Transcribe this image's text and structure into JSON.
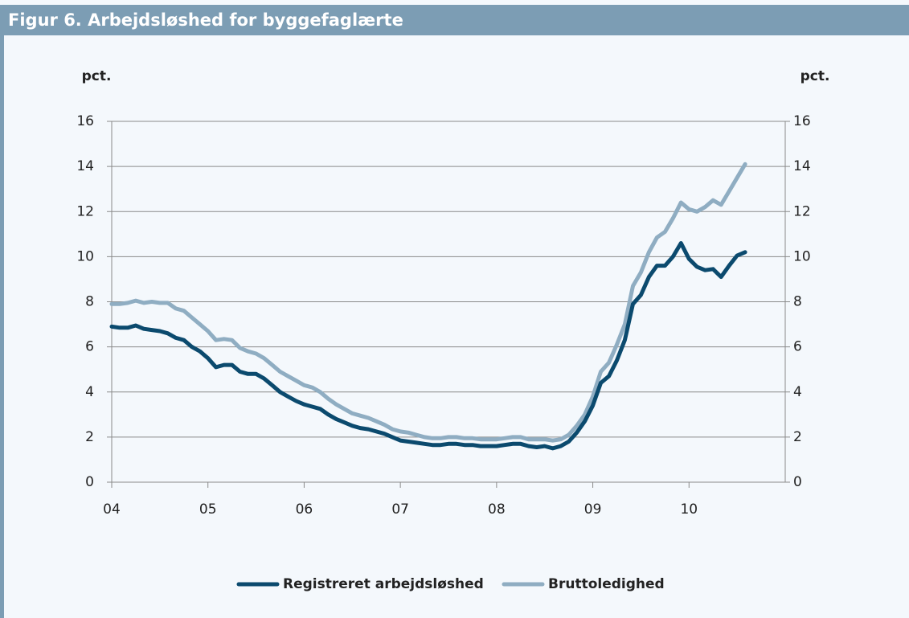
{
  "chart_data": {
    "type": "line",
    "title": "Figur 6. Arbejdsløshed for byggefaglærte",
    "ylabel": "pct.",
    "y2label": "pct.",
    "x": [
      4,
      4.083,
      4.167,
      4.25,
      4.333,
      4.417,
      4.5,
      4.583,
      4.667,
      4.75,
      4.833,
      4.917,
      5,
      5.083,
      5.167,
      5.25,
      5.333,
      5.417,
      5.5,
      5.583,
      5.667,
      5.75,
      5.833,
      5.917,
      6,
      6.083,
      6.167,
      6.25,
      6.333,
      6.417,
      6.5,
      6.583,
      6.667,
      6.75,
      6.833,
      6.917,
      7,
      7.083,
      7.167,
      7.25,
      7.333,
      7.417,
      7.5,
      7.583,
      7.667,
      7.75,
      7.833,
      7.917,
      8,
      8.083,
      8.167,
      8.25,
      8.333,
      8.417,
      8.5,
      8.583,
      8.667,
      8.75,
      8.833,
      8.917,
      9,
      9.083,
      9.167,
      9.25,
      9.333,
      9.417,
      9.5,
      9.583,
      9.667,
      9.75,
      9.833,
      9.917,
      10,
      10.083,
      10.167,
      10.25,
      10.333,
      10.417,
      10.5,
      10.583
    ],
    "series": [
      {
        "name": "Registreret arbejdsløshed",
        "color": "#0b4a6e",
        "values": [
          6.9,
          6.85,
          6.85,
          6.95,
          6.8,
          6.75,
          6.7,
          6.6,
          6.4,
          6.3,
          6.0,
          5.8,
          5.5,
          5.1,
          5.2,
          5.2,
          4.9,
          4.8,
          4.8,
          4.6,
          4.3,
          4.0,
          3.8,
          3.6,
          3.45,
          3.35,
          3.25,
          3.0,
          2.8,
          2.65,
          2.5,
          2.4,
          2.35,
          2.25,
          2.15,
          2.0,
          1.85,
          1.8,
          1.75,
          1.7,
          1.65,
          1.65,
          1.7,
          1.7,
          1.65,
          1.65,
          1.6,
          1.6,
          1.6,
          1.65,
          1.7,
          1.7,
          1.6,
          1.55,
          1.6,
          1.5,
          1.6,
          1.8,
          2.2,
          2.7,
          3.4,
          4.4,
          4.7,
          5.4,
          6.3,
          7.9,
          8.3,
          9.1,
          9.6,
          9.6,
          10.0,
          10.6,
          9.9,
          9.55,
          9.4,
          9.45,
          9.1,
          9.6,
          10.05,
          10.2
        ]
      },
      {
        "name": "Bruttoledighed",
        "color": "#8fadc2",
        "values": [
          7.9,
          7.9,
          7.95,
          8.05,
          7.95,
          8.0,
          7.95,
          7.95,
          7.7,
          7.6,
          7.3,
          7.0,
          6.7,
          6.3,
          6.35,
          6.3,
          5.95,
          5.8,
          5.7,
          5.5,
          5.2,
          4.9,
          4.7,
          4.5,
          4.3,
          4.2,
          4.0,
          3.7,
          3.45,
          3.25,
          3.05,
          2.95,
          2.85,
          2.7,
          2.55,
          2.35,
          2.25,
          2.2,
          2.1,
          2.0,
          1.95,
          1.95,
          2.0,
          2.0,
          1.95,
          1.95,
          1.9,
          1.9,
          1.9,
          1.95,
          2.0,
          2.0,
          1.9,
          1.9,
          1.9,
          1.85,
          1.9,
          2.1,
          2.5,
          3.0,
          3.8,
          4.9,
          5.3,
          6.1,
          7.0,
          8.7,
          9.3,
          10.2,
          10.85,
          11.1,
          11.7,
          12.4,
          12.1,
          12.0,
          12.2,
          12.5,
          12.3,
          12.9,
          13.5,
          14.1
        ]
      }
    ],
    "xlim": [
      4,
      11
    ],
    "xticks": [
      {
        "value": 4,
        "label": "04"
      },
      {
        "value": 5,
        "label": "05"
      },
      {
        "value": 6,
        "label": "06"
      },
      {
        "value": 7,
        "label": "07"
      },
      {
        "value": 8,
        "label": "08"
      },
      {
        "value": 9,
        "label": "09"
      },
      {
        "value": 10,
        "label": "10"
      }
    ],
    "ylim": [
      0,
      16
    ],
    "yticks": [
      0,
      2,
      4,
      6,
      8,
      10,
      12,
      14,
      16
    ],
    "y2lim": [
      0,
      16
    ],
    "y2ticks": [
      0,
      2,
      4,
      6,
      8,
      10,
      12,
      14,
      16
    ],
    "grid": true
  }
}
